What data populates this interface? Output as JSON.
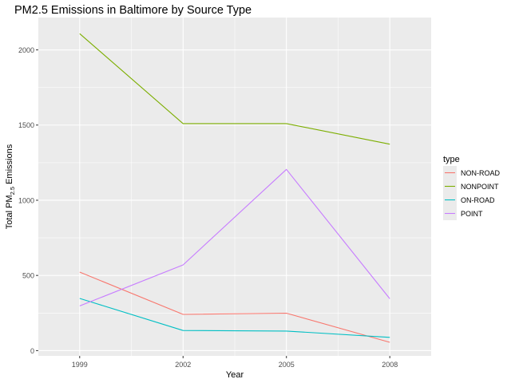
{
  "chart_data": {
    "type": "line",
    "title": "PM2.5 Emissions in Baltimore by Source Type",
    "xlabel": "Year",
    "ylabel": {
      "prefix": "Total PM",
      "subscript": "2.5",
      "suffix": " Emissions"
    },
    "x": [
      1999,
      2002,
      2005,
      2008
    ],
    "xlim": [
      1997.8,
      2009.2
    ],
    "ylim": [
      -35,
      2215
    ],
    "xticks": [
      "1999",
      "2002",
      "2005",
      "2008"
    ],
    "yticks": [
      0,
      500,
      1000,
      1500,
      2000
    ],
    "grid": true,
    "legend": {
      "title": "type",
      "placement": "right"
    },
    "series": [
      {
        "name": "NON-ROAD",
        "color": "#F8766D",
        "values": [
          522,
          241,
          249,
          55
        ]
      },
      {
        "name": "NONPOINT",
        "color": "#7CAE00",
        "values": [
          2108,
          1510,
          1510,
          1373
        ]
      },
      {
        "name": "ON-ROAD",
        "color": "#00BFC4",
        "values": [
          347,
          134,
          130,
          88
        ]
      },
      {
        "name": "POINT",
        "color": "#C77CFF",
        "values": [
          297,
          570,
          1205,
          345
        ]
      }
    ]
  }
}
